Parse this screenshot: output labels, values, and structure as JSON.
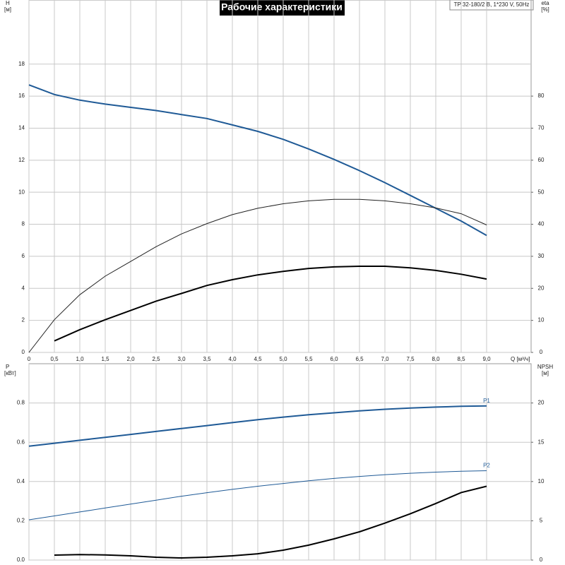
{
  "chart_data": [
    {
      "type": "line",
      "title": "Рабочие характеристики",
      "model": "TP 32-180/2 B, 1*230 V, 50Hz",
      "ylabel": "H",
      "yunit": "[м]",
      "y2label": "eta",
      "y2unit": "[%]",
      "xlabel": "Q [м³/ч]",
      "x": [
        0,
        0.5,
        1,
        1.5,
        2,
        2.5,
        3,
        3.5,
        4,
        4.5,
        5,
        5.5,
        6,
        6.5,
        7,
        7.5,
        8,
        8.5,
        9
      ],
      "xlim": [
        0,
        9.875
      ],
      "xticks": [
        0,
        {
          "value": 0.5,
          "label": "0,5"
        },
        {
          "value": 1,
          "label": "1,0"
        },
        {
          "value": 1.5,
          "label": "1,5"
        },
        {
          "value": 2,
          "label": "2,0"
        },
        {
          "value": 2.5,
          "label": "2,5"
        },
        {
          "value": 3,
          "label": "3,0"
        },
        {
          "value": 3.5,
          "label": "3,5"
        },
        {
          "value": 4,
          "label": "4,0"
        },
        {
          "value": 4.5,
          "label": "4,5"
        },
        {
          "value": 5,
          "label": "5,0"
        },
        {
          "value": 5.5,
          "label": "5,5"
        },
        {
          "value": 6,
          "label": "6,0"
        },
        {
          "value": 6.5,
          "label": "6,5"
        },
        {
          "value": 7,
          "label": "7,0"
        },
        {
          "value": 7.5,
          "label": "7,5"
        },
        {
          "value": 8,
          "label": "8,0"
        },
        {
          "value": 8.5,
          "label": "8,5"
        },
        {
          "value": 9,
          "label": "9,0"
        }
      ],
      "ylim": [
        0,
        22
      ],
      "yticks": [
        0,
        2,
        4,
        6,
        8,
        10,
        12,
        14,
        16,
        18
      ],
      "y2lim": [
        0,
        110
      ],
      "y2ticks": [
        0,
        10,
        20,
        30,
        40,
        50,
        60,
        70,
        80
      ],
      "grid": true,
      "series": [
        {
          "color": "#1f5a96",
          "width": 2,
          "values": [
            16.7,
            16.1,
            15.75,
            15.5,
            15.3,
            15.1,
            14.85,
            14.6,
            14.2,
            13.8,
            13.3,
            12.7,
            12.05,
            11.35,
            10.6,
            9.8,
            9.0,
            8.2,
            7.3
          ]
        },
        {
          "color": "#222222",
          "width": 1,
          "axis": "y2",
          "values": [
            0,
            10.2,
            18,
            23.8,
            28.4,
            33,
            37,
            40.2,
            43,
            45,
            46.4,
            47.3,
            47.8,
            47.8,
            47.3,
            46.4,
            45.1,
            43.3,
            39.8
          ]
        },
        {
          "color": "#000000",
          "width": 2,
          "axis": "y2",
          "values": [
            null,
            3.6,
            7.1,
            10.2,
            13.1,
            16,
            18.4,
            20.9,
            22.7,
            24.2,
            25.3,
            26.2,
            26.7,
            26.9,
            26.9,
            26.4,
            25.6,
            24.4,
            22.9
          ]
        }
      ]
    },
    {
      "type": "line",
      "ylabel": "P",
      "yunit": "[кВт]",
      "y2label": "NPSH",
      "y2unit": "[м]",
      "ylim": [
        0,
        1.0
      ],
      "yticks": [
        {
          "value": 0,
          "label": "0.0"
        },
        0.2,
        0.4,
        0.6,
        0.8
      ],
      "y2lim": [
        0,
        25
      ],
      "y2ticks": [
        0,
        5,
        10,
        15,
        20
      ],
      "grid": true,
      "series": [
        {
          "name": "P1",
          "color": "#1f5a96",
          "width": 2,
          "values": [
            0.58,
            0.595,
            0.61,
            0.625,
            0.64,
            0.655,
            0.67,
            0.685,
            0.7,
            0.715,
            0.728,
            0.74,
            0.75,
            0.76,
            0.768,
            0.774,
            0.779,
            0.783,
            0.785
          ]
        },
        {
          "name": "P2",
          "color": "#1f5a96",
          "width": 1,
          "values": [
            0.205,
            0.225,
            0.245,
            0.265,
            0.285,
            0.305,
            0.325,
            0.343,
            0.36,
            0.376,
            0.39,
            0.404,
            0.416,
            0.426,
            0.435,
            0.442,
            0.448,
            0.452,
            0.455
          ]
        },
        {
          "color": "#000000",
          "width": 2,
          "axis": "y2",
          "values": [
            null,
            0.63,
            0.7,
            0.65,
            0.54,
            0.36,
            0.27,
            0.36,
            0.54,
            0.8,
            1.26,
            1.9,
            2.7,
            3.6,
            4.7,
            5.9,
            7.2,
            8.6,
            9.4
          ]
        }
      ]
    }
  ]
}
